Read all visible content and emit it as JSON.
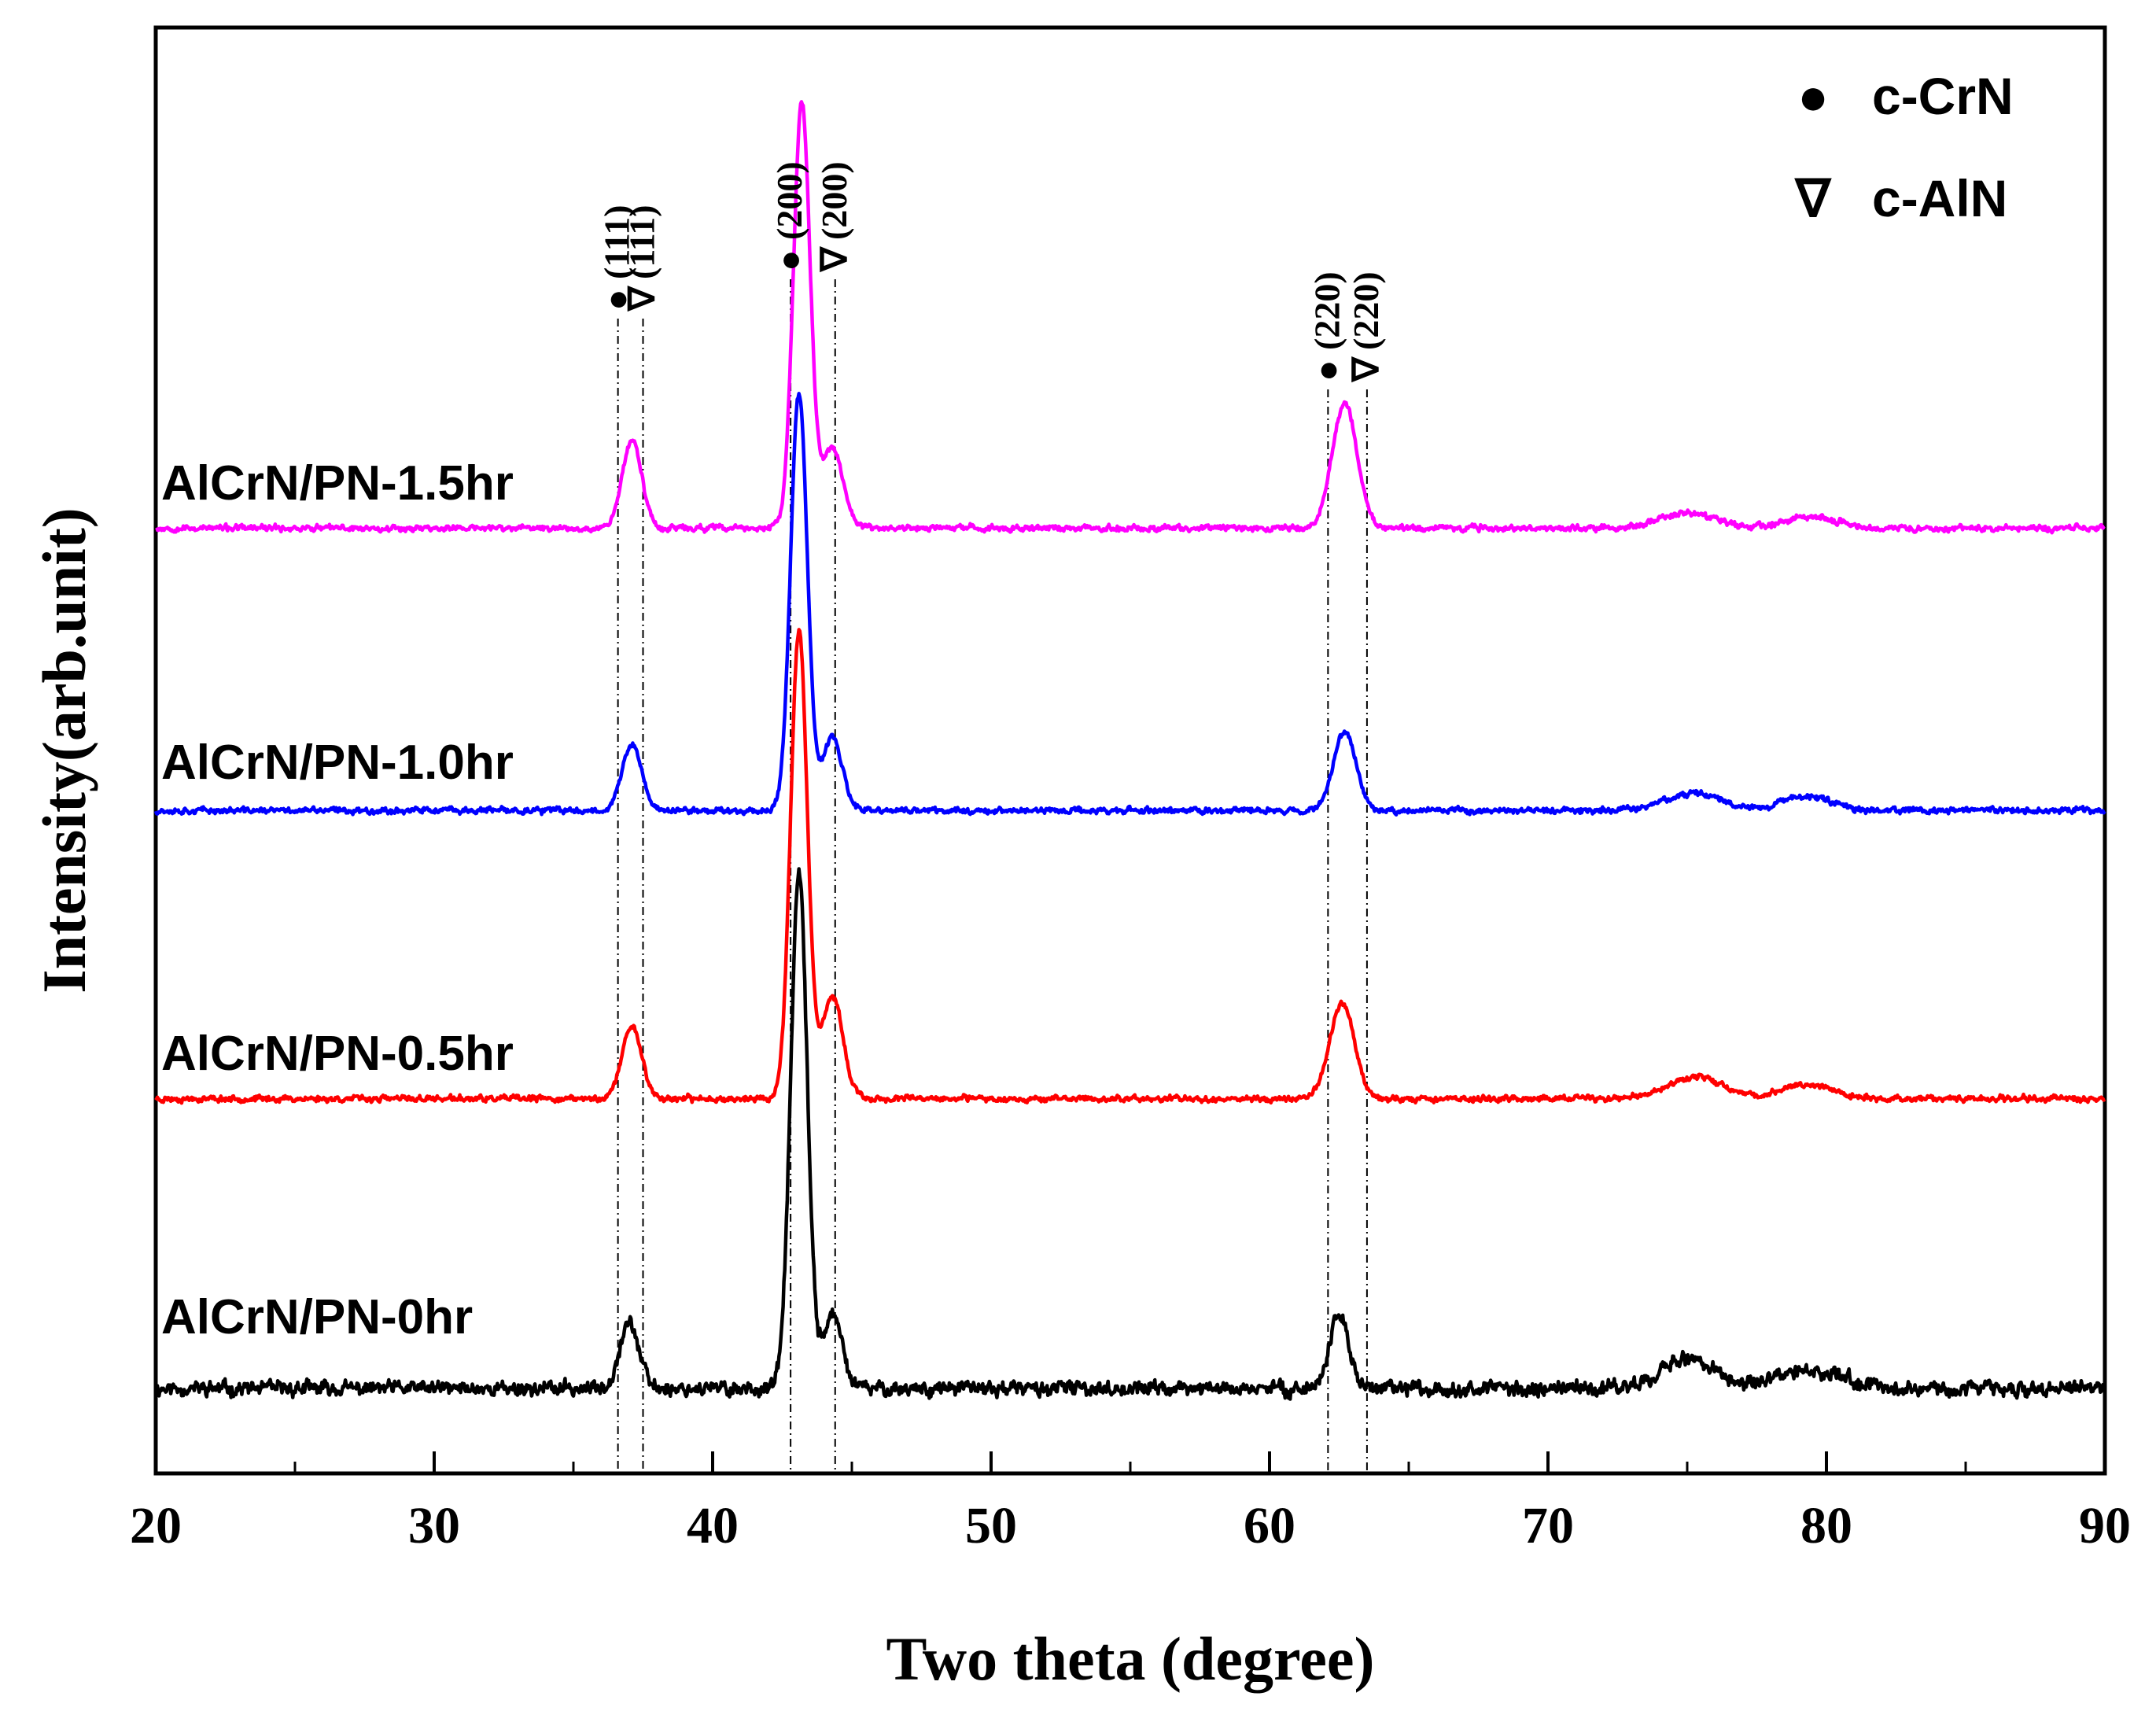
{
  "chart_data": {
    "type": "line",
    "title": "",
    "xlabel": "Two theta (degree)",
    "ylabel": "Intensity(arb.unit)",
    "xlim": [
      20,
      90
    ],
    "xticks": [
      "20",
      "30",
      "40",
      "50",
      "60",
      "70",
      "80",
      "90"
    ],
    "yticks_visible": false,
    "legend": {
      "position": "top-right",
      "entries": [
        {
          "symbol": "●",
          "label": "c-CrN"
        },
        {
          "symbol": "∇",
          "label": "c-AlN"
        }
      ]
    },
    "reference_lines": [
      {
        "x": 36.6,
        "phase": "c-CrN",
        "symbol": "●",
        "label": "(111)"
      },
      {
        "x": 37.5,
        "phase": "c-AlN",
        "symbol": "∇",
        "label": "(111)"
      },
      {
        "x": 42.8,
        "phase": "c-CrN",
        "symbol": "●",
        "label": "(200)"
      },
      {
        "x": 44.4,
        "phase": "c-AlN",
        "symbol": "∇",
        "label": "(200)"
      },
      {
        "x": 62.1,
        "phase": "c-CrN",
        "symbol": "●",
        "label": "(220)"
      },
      {
        "x": 63.5,
        "phase": "c-AlN",
        "symbol": "∇",
        "label": "(220)"
      }
    ],
    "series": [
      {
        "name": "AlCrN/PN-0hr",
        "color": "#000000",
        "baseline": 2.0,
        "noise": 0.07,
        "seed": 11,
        "peaks": [
          {
            "center": 37.0,
            "height": 0.45,
            "width": 0.35
          },
          {
            "center": 43.1,
            "height": 3.5,
            "width": 0.3
          },
          {
            "center": 44.3,
            "height": 0.5,
            "width": 0.35
          },
          {
            "center": 62.5,
            "height": 0.5,
            "width": 0.35
          },
          {
            "center": 75.0,
            "height": 0.2,
            "width": 1.0
          },
          {
            "center": 79.5,
            "height": 0.12,
            "width": 1.2
          }
        ]
      },
      {
        "name": "AlCrN/PN-0.5hr",
        "color": "#ff0000",
        "baseline": 3.98,
        "noise": 0.03,
        "seed": 23,
        "peaks": [
          {
            "center": 37.1,
            "height": 0.5,
            "width": 0.35
          },
          {
            "center": 43.1,
            "height": 3.2,
            "width": 0.3
          },
          {
            "center": 44.3,
            "height": 0.7,
            "width": 0.38
          },
          {
            "center": 62.6,
            "height": 0.65,
            "width": 0.45
          },
          {
            "center": 75.3,
            "height": 0.15,
            "width": 1.0
          },
          {
            "center": 79.3,
            "height": 0.1,
            "width": 0.9
          }
        ]
      },
      {
        "name": "AlCrN/PN-1.0hr",
        "color": "#0000ff",
        "baseline": 5.95,
        "noise": 0.03,
        "seed": 37,
        "peaks": [
          {
            "center": 37.1,
            "height": 0.45,
            "width": 0.35
          },
          {
            "center": 43.1,
            "height": 2.85,
            "width": 0.3
          },
          {
            "center": 44.3,
            "height": 0.5,
            "width": 0.35
          },
          {
            "center": 62.7,
            "height": 0.55,
            "width": 0.4
          },
          {
            "center": 75.2,
            "height": 0.12,
            "width": 1.0
          },
          {
            "center": 79.3,
            "height": 0.1,
            "width": 0.9
          }
        ]
      },
      {
        "name": "AlCrN/PN-1.5hr",
        "color": "#ff00ff",
        "baseline": 7.88,
        "noise": 0.03,
        "seed": 53,
        "peaks": [
          {
            "center": 37.1,
            "height": 0.6,
            "width": 0.35
          },
          {
            "center": 43.2,
            "height": 2.9,
            "width": 0.3
          },
          {
            "center": 44.3,
            "height": 0.55,
            "width": 0.38
          },
          {
            "center": 62.7,
            "height": 0.85,
            "width": 0.45
          },
          {
            "center": 75.0,
            "height": 0.1,
            "width": 1.0
          },
          {
            "center": 79.5,
            "height": 0.08,
            "width": 0.9
          }
        ]
      }
    ]
  }
}
